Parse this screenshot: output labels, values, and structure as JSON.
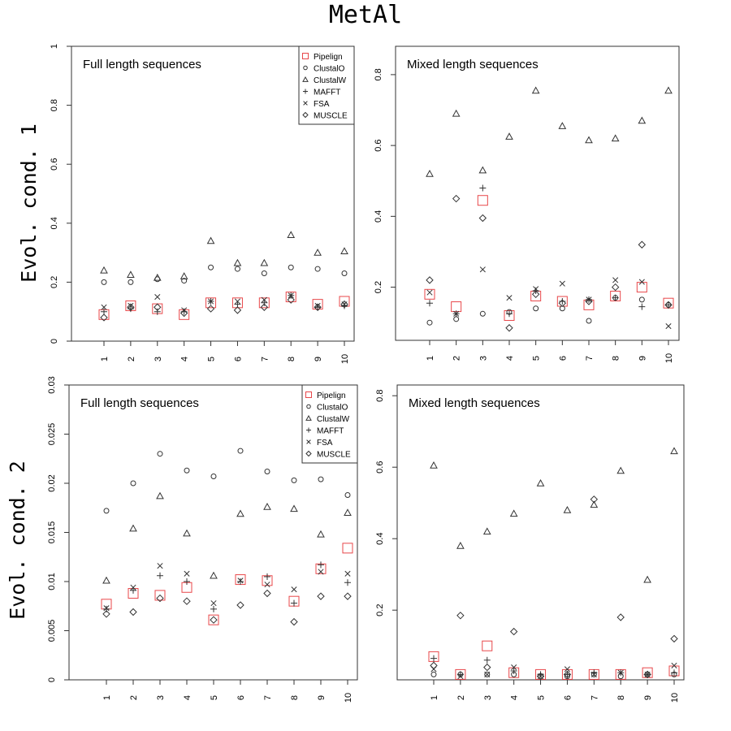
{
  "figure": {
    "title": "MetAl",
    "row_labels": [
      "Evol. cond. 1",
      "Evol. cond. 2"
    ]
  },
  "legend": {
    "entries": [
      "Pipelign",
      "ClustalO",
      "ClustalW",
      "MAFFT",
      "FSA",
      "MUSCLE"
    ],
    "symbols": [
      "square",
      "circle",
      "triangle",
      "plus",
      "cross",
      "diamond"
    ],
    "colors": [
      "#e8474a",
      "#333333",
      "#333333",
      "#333333",
      "#333333",
      "#333333"
    ]
  },
  "chart_data": [
    {
      "type": "scatter",
      "title": "Full length sequences",
      "x": [
        "1",
        "2",
        "3",
        "4",
        "5",
        "6",
        "7",
        "8",
        "9",
        "10"
      ],
      "yticks": [
        "0",
        "0.2",
        "0.4",
        "0.6",
        "0.8",
        "1"
      ],
      "ylim": [
        0,
        1
      ],
      "legend": "top-right",
      "series": [
        {
          "name": "Pipelign",
          "values": [
            0.09,
            0.12,
            0.11,
            0.09,
            0.13,
            0.13,
            0.13,
            0.15,
            0.125,
            0.135
          ]
        },
        {
          "name": "ClustalO",
          "values": [
            0.2,
            0.2,
            0.21,
            0.205,
            0.25,
            0.245,
            0.23,
            0.25,
            0.245,
            0.23
          ]
        },
        {
          "name": "ClustalW",
          "values": [
            0.24,
            0.225,
            0.215,
            0.22,
            0.34,
            0.265,
            0.265,
            0.36,
            0.3,
            0.305
          ]
        },
        {
          "name": "MAFFT",
          "values": [
            0.1,
            0.11,
            0.1,
            0.1,
            0.135,
            0.125,
            0.13,
            0.155,
            0.115,
            0.12
          ]
        },
        {
          "name": "FSA",
          "values": [
            0.115,
            0.12,
            0.15,
            0.105,
            0.135,
            0.135,
            0.14,
            0.155,
            0.12,
            0.125
          ]
        },
        {
          "name": "MUSCLE",
          "values": [
            0.08,
            0.115,
            0.115,
            0.095,
            0.11,
            0.105,
            0.115,
            0.14,
            0.115,
            0.125
          ]
        }
      ]
    },
    {
      "type": "scatter",
      "title": "Mixed length sequences",
      "x": [
        "1",
        "2",
        "3",
        "4",
        "5",
        "6",
        "7",
        "8",
        "9",
        "10"
      ],
      "yticks": [
        "0.2",
        "0.4",
        "0.6",
        "0.8"
      ],
      "ylim": [
        0.05,
        0.88
      ],
      "series": [
        {
          "name": "Pipelign",
          "values": [
            0.18,
            0.145,
            0.445,
            0.12,
            0.175,
            0.16,
            0.15,
            0.175,
            0.2,
            0.155
          ]
        },
        {
          "name": "ClustalO",
          "values": [
            0.1,
            0.11,
            0.125,
            0.13,
            0.14,
            0.14,
            0.105,
            0.17,
            0.165,
            0.15
          ]
        },
        {
          "name": "ClustalW",
          "values": [
            0.52,
            0.69,
            0.53,
            0.625,
            0.755,
            0.655,
            0.615,
            0.62,
            0.67,
            0.755
          ]
        },
        {
          "name": "MAFFT",
          "values": [
            0.155,
            0.125,
            0.48,
            0.125,
            0.19,
            0.16,
            0.165,
            0.17,
            0.145,
            0.15
          ]
        },
        {
          "name": "FSA",
          "values": [
            0.185,
            0.125,
            0.25,
            0.17,
            0.195,
            0.21,
            0.165,
            0.22,
            0.215,
            0.09
          ]
        },
        {
          "name": "MUSCLE",
          "values": [
            0.22,
            0.45,
            0.395,
            0.085,
            0.18,
            0.155,
            0.16,
            0.2,
            0.32,
            0.15
          ]
        }
      ]
    },
    {
      "type": "scatter",
      "title": "Full length sequences",
      "x": [
        "1",
        "2",
        "3",
        "4",
        "5",
        "6",
        "7",
        "8",
        "9",
        "10"
      ],
      "yticks": [
        "0",
        "0.005",
        "0.01",
        "0.015",
        "0.02",
        "0.025",
        "0.03"
      ],
      "ylim": [
        0,
        0.03
      ],
      "legend": "top-right",
      "series": [
        {
          "name": "Pipelign",
          "values": [
            0.0077,
            0.0088,
            0.0086,
            0.0094,
            0.0061,
            0.0102,
            0.0101,
            0.008,
            0.0113,
            0.0134
          ]
        },
        {
          "name": "ClustalO",
          "values": [
            0.0172,
            0.02,
            0.023,
            0.0213,
            0.0207,
            0.0233,
            0.0212,
            0.0203,
            0.0204,
            0.0188
          ]
        },
        {
          "name": "ClustalW",
          "values": [
            0.0101,
            0.0154,
            0.0187,
            0.0149,
            0.0106,
            0.0169,
            0.0176,
            0.0174,
            0.0148,
            0.017
          ]
        },
        {
          "name": "MAFFT",
          "values": [
            0.0072,
            0.0091,
            0.0106,
            0.01,
            0.0072,
            0.01,
            0.0105,
            0.0078,
            0.0117,
            0.0099
          ]
        },
        {
          "name": "FSA",
          "values": [
            0.0073,
            0.0094,
            0.0116,
            0.0108,
            0.0078,
            0.0101,
            0.0097,
            0.0092,
            0.011,
            0.0108
          ]
        },
        {
          "name": "MUSCLE",
          "values": [
            0.0067,
            0.0069,
            0.0083,
            0.008,
            0.0061,
            0.0076,
            0.0088,
            0.0059,
            0.0085,
            0.0085
          ]
        }
      ]
    },
    {
      "type": "scatter",
      "title": "Mixed length sequences",
      "x": [
        "1",
        "2",
        "3",
        "4",
        "5",
        "6",
        "7",
        "8",
        "9",
        "10"
      ],
      "yticks": [
        "0.2",
        "0.4",
        "0.6",
        "0.8"
      ],
      "ylim": [
        0.005,
        0.83
      ],
      "series": [
        {
          "name": "Pipelign",
          "values": [
            0.07,
            0.02,
            0.1,
            0.025,
            0.02,
            0.02,
            0.02,
            0.02,
            0.025,
            0.03
          ]
        },
        {
          "name": "ClustalO",
          "values": [
            0.02,
            0.02,
            0.02,
            0.02,
            0.015,
            0.015,
            0.02,
            0.015,
            0.02,
            0.02
          ]
        },
        {
          "name": "ClustalW",
          "values": [
            0.605,
            0.38,
            0.42,
            0.47,
            0.555,
            0.48,
            0.495,
            0.59,
            0.285,
            0.645
          ]
        },
        {
          "name": "MAFFT",
          "values": [
            0.065,
            0.02,
            0.06,
            0.03,
            0.02,
            0.02,
            0.025,
            0.025,
            0.02,
            0.025
          ]
        },
        {
          "name": "FSA",
          "values": [
            0.035,
            0.015,
            0.02,
            0.04,
            0.015,
            0.035,
            0.02,
            0.025,
            0.02,
            0.045
          ]
        },
        {
          "name": "MUSCLE",
          "values": [
            0.045,
            0.185,
            0.04,
            0.14,
            0.015,
            0.02,
            0.51,
            0.18,
            0.02,
            0.12
          ]
        }
      ]
    }
  ]
}
